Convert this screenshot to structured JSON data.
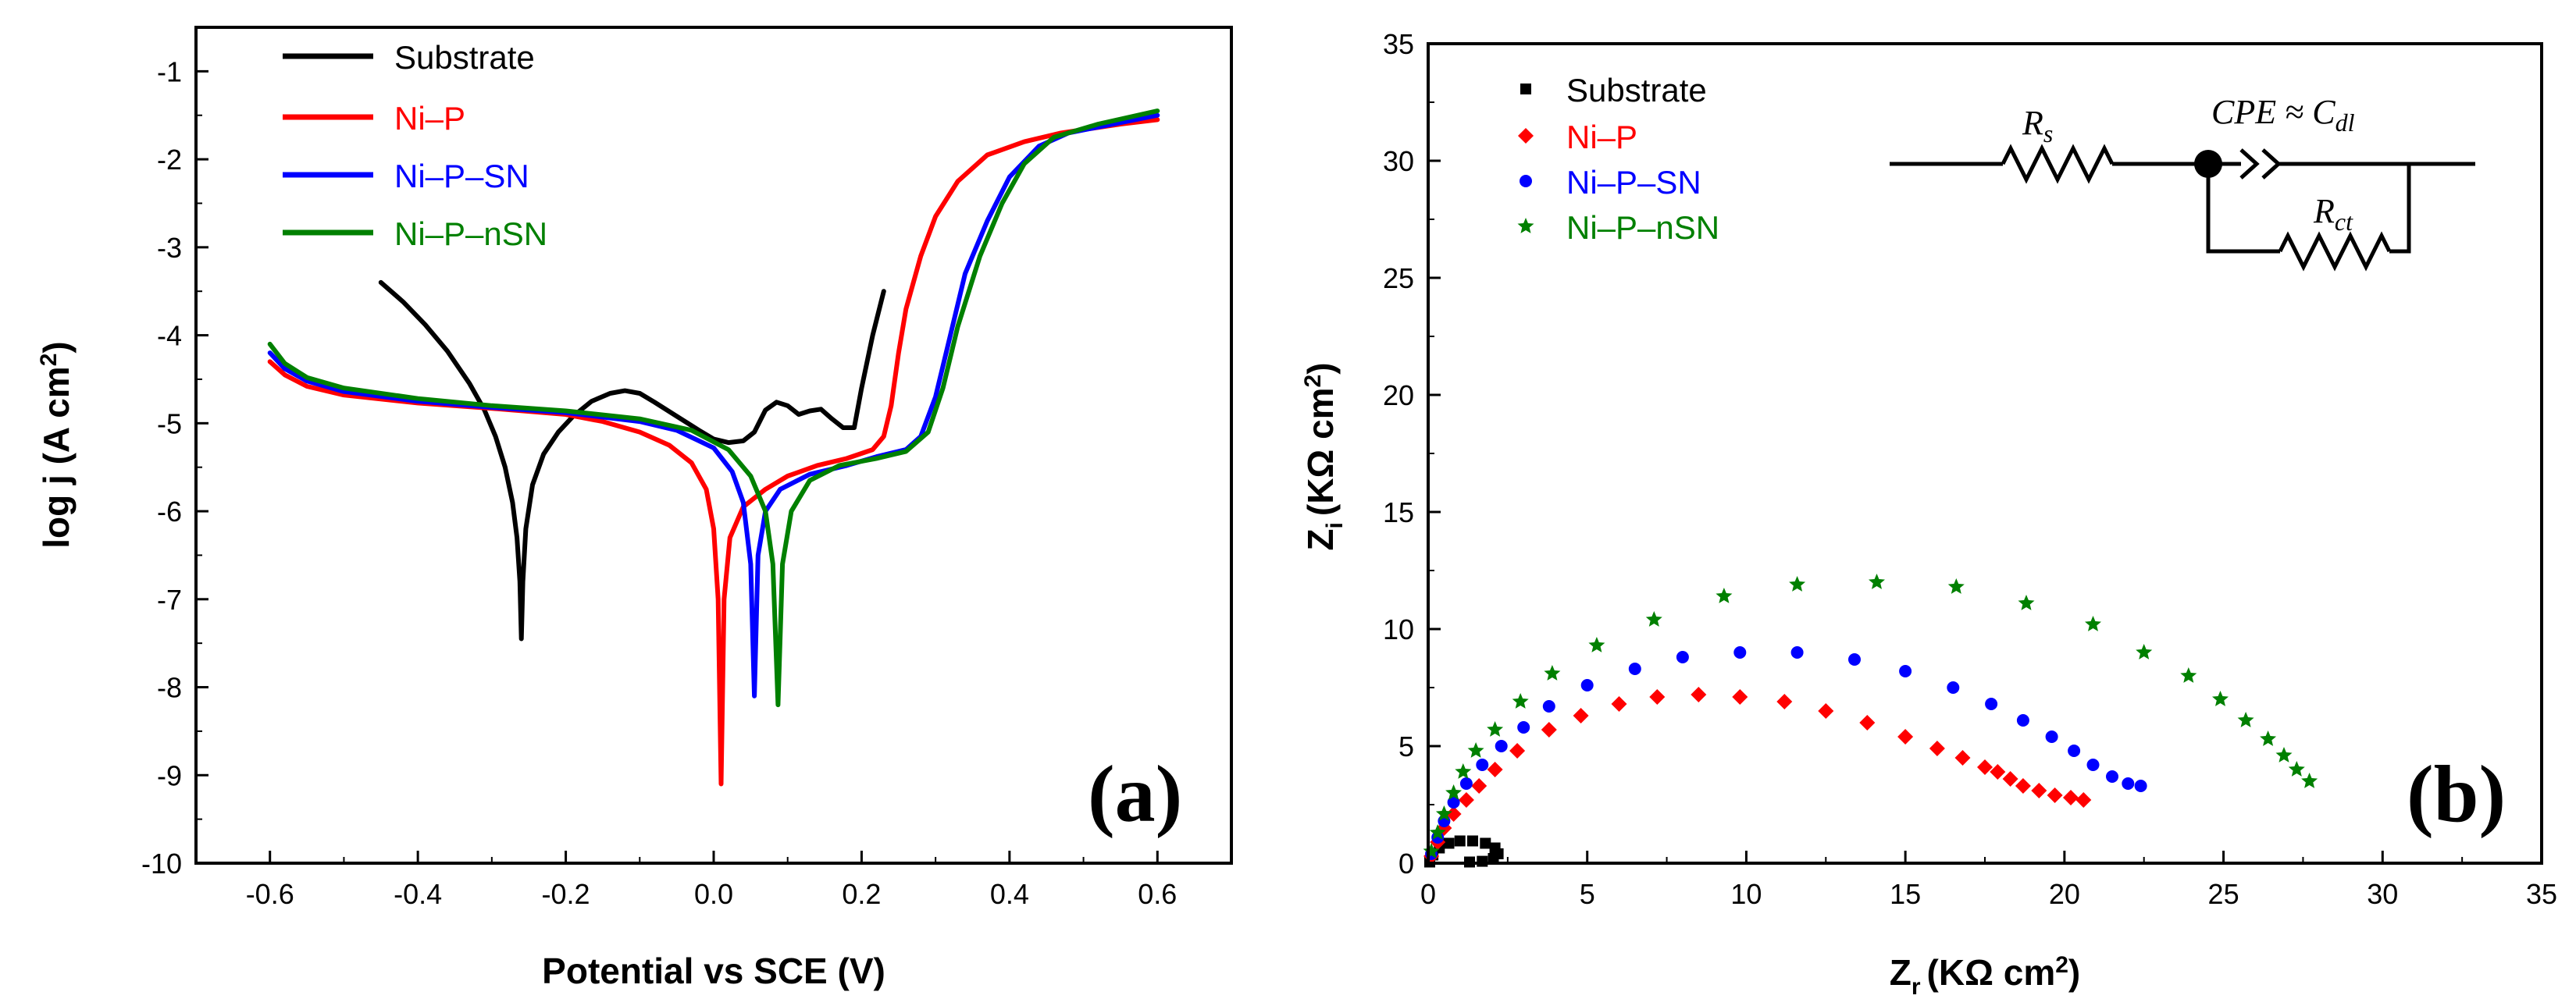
{
  "chart_data": [
    {
      "type": "line",
      "panel_label": "(a)",
      "title": "",
      "xlabel": "Potential vs SCE (V)",
      "ylabel_main": "log j (A cm",
      "ylabel_sup": "2",
      "ylabel_end": ")",
      "xlim": [
        -0.7,
        0.7
      ],
      "ylim": [
        -10,
        -0.5
      ],
      "xticks": [
        "-0.6",
        "-0.4",
        "-0.2",
        "0.0",
        "0.2",
        "0.4",
        "0.6"
      ],
      "yticks": [
        "-1",
        "-2",
        "-3",
        "-4",
        "-5",
        "-6",
        "-7",
        "-8",
        "-9",
        "-10"
      ],
      "legend_position": "top-left",
      "series": [
        {
          "name": "Substrate",
          "color": "#000000",
          "points": [
            [
              -0.45,
              -3.4
            ],
            [
              -0.42,
              -3.62
            ],
            [
              -0.39,
              -3.88
            ],
            [
              -0.36,
              -4.18
            ],
            [
              -0.33,
              -4.55
            ],
            [
              -0.31,
              -4.85
            ],
            [
              -0.295,
              -5.15
            ],
            [
              -0.282,
              -5.5
            ],
            [
              -0.272,
              -5.9
            ],
            [
              -0.266,
              -6.3
            ],
            [
              -0.262,
              -6.8
            ],
            [
              -0.26,
              -7.45
            ],
            [
              -0.258,
              -6.8
            ],
            [
              -0.254,
              -6.2
            ],
            [
              -0.245,
              -5.7
            ],
            [
              -0.23,
              -5.35
            ],
            [
              -0.21,
              -5.1
            ],
            [
              -0.19,
              -4.92
            ],
            [
              -0.165,
              -4.75
            ],
            [
              -0.14,
              -4.66
            ],
            [
              -0.12,
              -4.63
            ],
            [
              -0.1,
              -4.66
            ],
            [
              -0.08,
              -4.76
            ],
            [
              -0.05,
              -4.92
            ],
            [
              -0.02,
              -5.08
            ],
            [
              0.0,
              -5.18
            ],
            [
              0.02,
              -5.22
            ],
            [
              0.04,
              -5.2
            ],
            [
              0.055,
              -5.1
            ],
            [
              0.07,
              -4.85
            ],
            [
              0.085,
              -4.76
            ],
            [
              0.1,
              -4.8
            ],
            [
              0.115,
              -4.9
            ],
            [
              0.13,
              -4.86
            ],
            [
              0.145,
              -4.84
            ],
            [
              0.16,
              -4.95
            ],
            [
              0.175,
              -5.05
            ],
            [
              0.19,
              -5.05
            ],
            [
              0.2,
              -4.6
            ],
            [
              0.215,
              -4.0
            ],
            [
              0.23,
              -3.5
            ]
          ]
        },
        {
          "name": "Ni–P",
          "color": "#ff0000",
          "points": [
            [
              -0.6,
              -4.3
            ],
            [
              -0.58,
              -4.45
            ],
            [
              -0.55,
              -4.58
            ],
            [
              -0.5,
              -4.68
            ],
            [
              -0.4,
              -4.77
            ],
            [
              -0.3,
              -4.83
            ],
            [
              -0.2,
              -4.9
            ],
            [
              -0.15,
              -4.98
            ],
            [
              -0.1,
              -5.1
            ],
            [
              -0.06,
              -5.25
            ],
            [
              -0.03,
              -5.45
            ],
            [
              -0.01,
              -5.75
            ],
            [
              0.0,
              -6.2
            ],
            [
              0.006,
              -7.0
            ],
            [
              0.01,
              -9.1
            ],
            [
              0.014,
              -7.0
            ],
            [
              0.022,
              -6.3
            ],
            [
              0.04,
              -5.95
            ],
            [
              0.07,
              -5.75
            ],
            [
              0.1,
              -5.6
            ],
            [
              0.14,
              -5.48
            ],
            [
              0.18,
              -5.4
            ],
            [
              0.215,
              -5.3
            ],
            [
              0.23,
              -5.15
            ],
            [
              0.24,
              -4.8
            ],
            [
              0.25,
              -4.2
            ],
            [
              0.26,
              -3.7
            ],
            [
              0.28,
              -3.1
            ],
            [
              0.3,
              -2.65
            ],
            [
              0.33,
              -2.25
            ],
            [
              0.37,
              -1.95
            ],
            [
              0.42,
              -1.8
            ],
            [
              0.47,
              -1.7
            ],
            [
              0.55,
              -1.6
            ],
            [
              0.6,
              -1.55
            ]
          ]
        },
        {
          "name": "Ni–P–SN",
          "color": "#0000ff",
          "points": [
            [
              -0.6,
              -4.2
            ],
            [
              -0.58,
              -4.38
            ],
            [
              -0.55,
              -4.52
            ],
            [
              -0.5,
              -4.64
            ],
            [
              -0.4,
              -4.75
            ],
            [
              -0.3,
              -4.82
            ],
            [
              -0.2,
              -4.88
            ],
            [
              -0.1,
              -4.98
            ],
            [
              -0.05,
              -5.08
            ],
            [
              0.0,
              -5.28
            ],
            [
              0.025,
              -5.55
            ],
            [
              0.04,
              -5.9
            ],
            [
              0.05,
              -6.6
            ],
            [
              0.055,
              -8.1
            ],
            [
              0.06,
              -6.5
            ],
            [
              0.07,
              -6.0
            ],
            [
              0.09,
              -5.75
            ],
            [
              0.13,
              -5.58
            ],
            [
              0.18,
              -5.48
            ],
            [
              0.22,
              -5.38
            ],
            [
              0.26,
              -5.3
            ],
            [
              0.28,
              -5.15
            ],
            [
              0.3,
              -4.7
            ],
            [
              0.32,
              -4.0
            ],
            [
              0.34,
              -3.3
            ],
            [
              0.37,
              -2.7
            ],
            [
              0.4,
              -2.2
            ],
            [
              0.44,
              -1.85
            ],
            [
              0.48,
              -1.7
            ],
            [
              0.54,
              -1.6
            ],
            [
              0.6,
              -1.5
            ]
          ]
        },
        {
          "name": "Ni–P–nSN",
          "color": "#008000",
          "points": [
            [
              -0.6,
              -4.1
            ],
            [
              -0.58,
              -4.32
            ],
            [
              -0.55,
              -4.48
            ],
            [
              -0.5,
              -4.6
            ],
            [
              -0.4,
              -4.72
            ],
            [
              -0.3,
              -4.8
            ],
            [
              -0.2,
              -4.86
            ],
            [
              -0.1,
              -4.95
            ],
            [
              -0.03,
              -5.08
            ],
            [
              0.02,
              -5.3
            ],
            [
              0.05,
              -5.6
            ],
            [
              0.07,
              -6.0
            ],
            [
              0.08,
              -6.6
            ],
            [
              0.087,
              -8.2
            ],
            [
              0.093,
              -6.6
            ],
            [
              0.105,
              -6.0
            ],
            [
              0.13,
              -5.65
            ],
            [
              0.17,
              -5.48
            ],
            [
              0.22,
              -5.4
            ],
            [
              0.26,
              -5.32
            ],
            [
              0.29,
              -5.1
            ],
            [
              0.31,
              -4.6
            ],
            [
              0.33,
              -3.9
            ],
            [
              0.36,
              -3.1
            ],
            [
              0.39,
              -2.5
            ],
            [
              0.42,
              -2.05
            ],
            [
              0.46,
              -1.75
            ],
            [
              0.52,
              -1.6
            ],
            [
              0.6,
              -1.45
            ]
          ]
        }
      ]
    },
    {
      "type": "scatter",
      "panel_label": "(b)",
      "title": "",
      "xlabel_main": "Z",
      "xlabel_sub": "r",
      "xlabel_unit": "(KΩ  cm",
      "xlabel_sup": "2",
      "xlabel_end": ")",
      "ylabel_main": "Z",
      "ylabel_sub": "i",
      "ylabel_unit": "(KΩ cm",
      "ylabel_sup": "2",
      "ylabel_end": ")",
      "xlim": [
        0,
        35
      ],
      "ylim": [
        0,
        35
      ],
      "xticks": [
        "0",
        "5",
        "10",
        "15",
        "20",
        "25",
        "30",
        "35"
      ],
      "yticks": [
        "0",
        "5",
        "10",
        "15",
        "20",
        "25",
        "30",
        "35"
      ],
      "legend_position": "top-left",
      "circuit_labels": {
        "rs": "R",
        "rs_sub": "s",
        "cpe": "CPE ≈ C",
        "cpe_sub": "dl",
        "rct": "R",
        "rct_sub": "ct"
      },
      "series": [
        {
          "name": "Substrate",
          "color": "#000000",
          "marker": "square",
          "points": [
            [
              0.05,
              0.05
            ],
            [
              0.15,
              0.35
            ],
            [
              0.35,
              0.65
            ],
            [
              0.65,
              0.85
            ],
            [
              1.0,
              0.95
            ],
            [
              1.4,
              0.95
            ],
            [
              1.8,
              0.85
            ],
            [
              2.1,
              0.65
            ],
            [
              2.2,
              0.4
            ],
            [
              2.05,
              0.2
            ],
            [
              1.7,
              0.08
            ],
            [
              1.3,
              0.05
            ]
          ]
        },
        {
          "name": "Ni–P",
          "color": "#ff0000",
          "marker": "diamond",
          "points": [
            [
              0.1,
              0.3
            ],
            [
              0.3,
              0.9
            ],
            [
              0.5,
              1.5
            ],
            [
              0.8,
              2.1
            ],
            [
              1.2,
              2.7
            ],
            [
              1.6,
              3.3
            ],
            [
              2.1,
              4.0
            ],
            [
              2.8,
              4.8
            ],
            [
              3.8,
              5.7
            ],
            [
              4.8,
              6.3
            ],
            [
              6.0,
              6.8
            ],
            [
              7.2,
              7.1
            ],
            [
              8.5,
              7.2
            ],
            [
              9.8,
              7.1
            ],
            [
              11.2,
              6.9
            ],
            [
              12.5,
              6.5
            ],
            [
              13.8,
              6.0
            ],
            [
              15.0,
              5.4
            ],
            [
              16.0,
              4.9
            ],
            [
              16.8,
              4.5
            ],
            [
              17.5,
              4.1
            ],
            [
              17.9,
              3.9
            ],
            [
              18.3,
              3.6
            ],
            [
              18.7,
              3.3
            ],
            [
              19.2,
              3.1
            ],
            [
              19.7,
              2.9
            ],
            [
              20.2,
              2.8
            ],
            [
              20.6,
              2.7
            ]
          ]
        },
        {
          "name": "Ni–P–SN",
          "color": "#0000ff",
          "marker": "circle",
          "points": [
            [
              0.1,
              0.4
            ],
            [
              0.3,
              1.1
            ],
            [
              0.5,
              1.8
            ],
            [
              0.8,
              2.6
            ],
            [
              1.2,
              3.4
            ],
            [
              1.7,
              4.2
            ],
            [
              2.3,
              5.0
            ],
            [
              3.0,
              5.8
            ],
            [
              3.8,
              6.7
            ],
            [
              5.0,
              7.6
            ],
            [
              6.5,
              8.3
            ],
            [
              8.0,
              8.8
            ],
            [
              9.8,
              9.0
            ],
            [
              11.6,
              9.0
            ],
            [
              13.4,
              8.7
            ],
            [
              15.0,
              8.2
            ],
            [
              16.5,
              7.5
            ],
            [
              17.7,
              6.8
            ],
            [
              18.7,
              6.1
            ],
            [
              19.6,
              5.4
            ],
            [
              20.3,
              4.8
            ],
            [
              20.9,
              4.2
            ],
            [
              21.5,
              3.7
            ],
            [
              22.0,
              3.4
            ],
            [
              22.4,
              3.3
            ]
          ]
        },
        {
          "name": "Ni–P–nSN",
          "color": "#008000",
          "marker": "star",
          "points": [
            [
              0.1,
              0.5
            ],
            [
              0.3,
              1.3
            ],
            [
              0.5,
              2.1
            ],
            [
              0.8,
              3.0
            ],
            [
              1.1,
              3.9
            ],
            [
              1.5,
              4.8
            ],
            [
              2.1,
              5.7
            ],
            [
              2.9,
              6.9
            ],
            [
              3.9,
              8.1
            ],
            [
              5.3,
              9.3
            ],
            [
              7.1,
              10.4
            ],
            [
              9.3,
              11.4
            ],
            [
              11.6,
              11.9
            ],
            [
              14.1,
              12.0
            ],
            [
              16.6,
              11.8
            ],
            [
              18.8,
              11.1
            ],
            [
              20.9,
              10.2
            ],
            [
              22.5,
              9.0
            ],
            [
              23.9,
              8.0
            ],
            [
              24.9,
              7.0
            ],
            [
              25.7,
              6.1
            ],
            [
              26.4,
              5.3
            ],
            [
              26.9,
              4.6
            ],
            [
              27.3,
              4.0
            ],
            [
              27.7,
              3.5
            ]
          ]
        }
      ]
    }
  ]
}
